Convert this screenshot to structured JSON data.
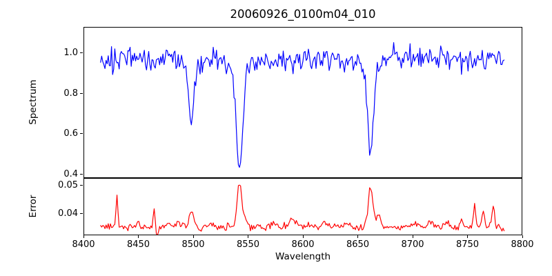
{
  "window": {
    "title": "20060926_0100m04_010"
  },
  "colors": {
    "background": "#ffffff",
    "spectrum_line": "#0000ff",
    "error_line": "#ff0000",
    "axes": "#000000",
    "text": "#000000"
  },
  "x_axis": {
    "label": "Wavelength",
    "lim": [
      8400,
      8800
    ],
    "ticks": [
      {
        "value": 8400,
        "label": "8400"
      },
      {
        "value": 8450,
        "label": "8450"
      },
      {
        "value": 8500,
        "label": "8500"
      },
      {
        "value": 8550,
        "label": "8550"
      },
      {
        "value": 8600,
        "label": "8600"
      },
      {
        "value": 8650,
        "label": "8650"
      },
      {
        "value": 8700,
        "label": "8700"
      },
      {
        "value": 8750,
        "label": "8750"
      },
      {
        "value": 8800,
        "label": "8800"
      }
    ]
  },
  "chart_data": [
    {
      "type": "line",
      "name": "spectrum",
      "title": "20060926_0100m04_010",
      "ylabel": "Spectrum",
      "line_color": "#0000ff",
      "xlim": [
        8400,
        8800
      ],
      "ylim": [
        0.38,
        1.13
      ],
      "grid": false,
      "legend": null,
      "y_ticks": [
        {
          "value": 1.0,
          "label": "1.0"
        },
        {
          "value": 0.8,
          "label": "0.8"
        },
        {
          "value": 0.6,
          "label": "0.6"
        },
        {
          "value": 0.4,
          "label": "0.4"
        }
      ],
      "data_x_range": [
        8415,
        8784
      ],
      "series_spec": {
        "kind": "spectrum",
        "x_start": 8415,
        "x_end": 8784,
        "step": 1,
        "seed": 92604,
        "continuum": 0.972,
        "noise_sigma": 0.027,
        "absorption_lines": [
          {
            "center": 8498,
            "depth": 0.28,
            "sigma": 2.2
          },
          {
            "center": 8498,
            "depth": 0.05,
            "sigma": 5.5
          },
          {
            "center": 8542,
            "depth": 0.46,
            "sigma": 2.8
          },
          {
            "center": 8542,
            "depth": 0.1,
            "sigma": 6.5
          },
          {
            "center": 8662,
            "depth": 0.4,
            "sigma": 2.6
          },
          {
            "center": 8662,
            "depth": 0.08,
            "sigma": 6.0
          }
        ]
      },
      "key_features": [
        {
          "line": "absorption",
          "wavelength": 8498,
          "min_flux": 0.66
        },
        {
          "line": "absorption",
          "wavelength": 8542,
          "min_flux": 0.42
        },
        {
          "line": "absorption",
          "wavelength": 8662,
          "min_flux": 0.5
        }
      ]
    },
    {
      "type": "line",
      "name": "error",
      "ylabel": "Error",
      "line_color": "#ff0000",
      "xlim": [
        8400,
        8800
      ],
      "ylim": [
        0.0325,
        0.0525
      ],
      "grid": false,
      "legend": null,
      "y_ticks": [
        {
          "value": 0.05,
          "label": "0.05"
        },
        {
          "value": 0.04,
          "label": "0.04"
        }
      ],
      "data_x_range": [
        8415,
        8784
      ],
      "series_spec": {
        "kind": "error",
        "x_start": 8415,
        "x_end": 8784,
        "step": 1,
        "seed": 10004,
        "baseline": 0.0353,
        "noise_sigma": 0.0006,
        "spikes": [
          {
            "center": 8430,
            "height": 0.0112,
            "sigma": 0.8
          },
          {
            "center": 8449,
            "height": 0.0015,
            "sigma": 1.2
          },
          {
            "center": 8464,
            "height": 0.0072,
            "sigma": 0.8
          },
          {
            "center": 8466.5,
            "height": -0.003,
            "sigma": 0.9
          },
          {
            "center": 8477,
            "height": 0.0013,
            "sigma": 1.8
          },
          {
            "center": 8486,
            "height": 0.002,
            "sigma": 1.6
          },
          {
            "center": 8498,
            "height": 0.0058,
            "sigma": 2.0
          },
          {
            "center": 8516,
            "height": 0.0012,
            "sigma": 1.8
          },
          {
            "center": 8542,
            "height": 0.0158,
            "sigma": 2.0
          },
          {
            "center": 8547,
            "height": 0.003,
            "sigma": 1.8
          },
          {
            "center": 8573,
            "height": 0.0013,
            "sigma": 1.8
          },
          {
            "center": 8590,
            "height": 0.0026,
            "sigma": 2.8
          },
          {
            "center": 8620,
            "height": 0.0012,
            "sigma": 2.0
          },
          {
            "center": 8640,
            "height": 0.0014,
            "sigma": 2.0
          },
          {
            "center": 8662,
            "height": 0.014,
            "sigma": 2.1
          },
          {
            "center": 8669,
            "height": 0.0042,
            "sigma": 1.8
          },
          {
            "center": 8700,
            "height": 0.0013,
            "sigma": 2.0
          },
          {
            "center": 8716,
            "height": 0.0022,
            "sigma": 1.8
          },
          {
            "center": 8731,
            "height": 0.0015,
            "sigma": 1.8
          },
          {
            "center": 8745,
            "height": 0.0018,
            "sigma": 1.6
          },
          {
            "center": 8757,
            "height": 0.0082,
            "sigma": 1.0
          },
          {
            "center": 8765,
            "height": 0.0055,
            "sigma": 1.1
          },
          {
            "center": 8774,
            "height": 0.008,
            "sigma": 1.1
          },
          {
            "center": 8783,
            "height": -0.0013,
            "sigma": 1.5
          }
        ]
      },
      "key_features": [
        {
          "line": "error-peak",
          "wavelength": 8430,
          "max_error": 0.047
        },
        {
          "line": "error-peak",
          "wavelength": 8542,
          "max_error": 0.051
        },
        {
          "line": "error-peak",
          "wavelength": 8662,
          "max_error": 0.05
        }
      ]
    }
  ]
}
